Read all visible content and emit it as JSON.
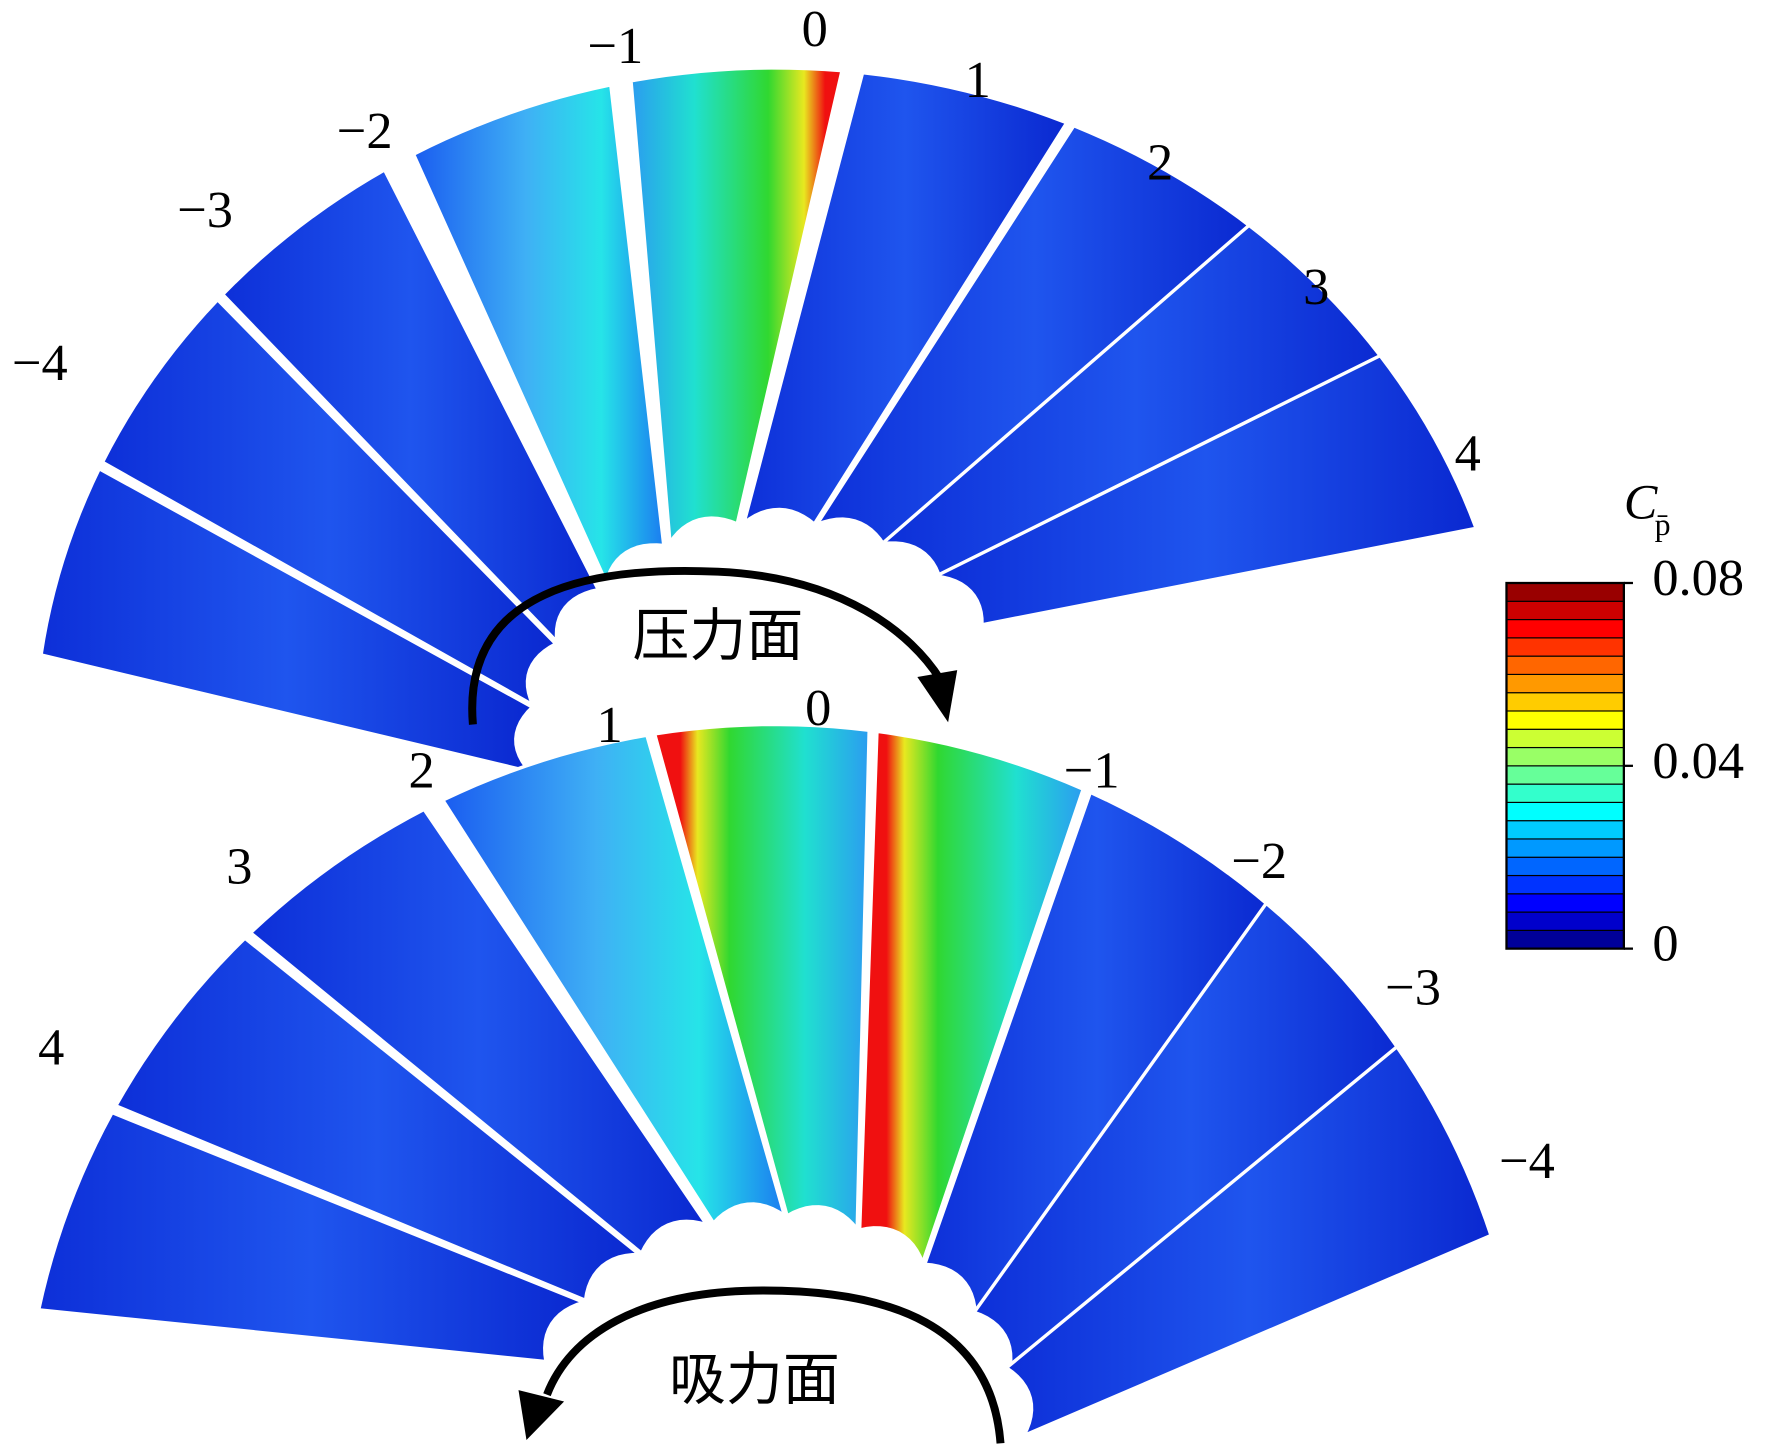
{
  "pressure_side": {
    "label": "压力面",
    "blades": [
      "−4",
      "−3",
      "−2",
      "−1",
      "0",
      "1",
      "2",
      "3",
      "4"
    ]
  },
  "suction_side": {
    "label": "吸力面",
    "blades": [
      "4",
      "3",
      "2",
      "1",
      "0",
      "−1",
      "−2",
      "−3",
      "−4"
    ]
  },
  "colorbar": {
    "title": "C",
    "title_subscript": "p̄",
    "lim": [
      0,
      0.08
    ],
    "ticks": [
      0,
      0.04,
      0.08
    ]
  }
}
